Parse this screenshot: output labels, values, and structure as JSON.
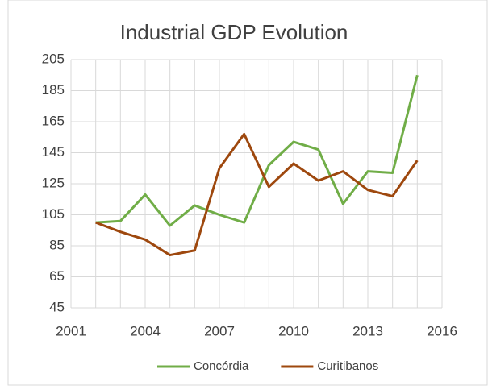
{
  "chart_data": {
    "type": "line",
    "title": "Industrial GDP Evolution",
    "x": [
      2002,
      2003,
      2004,
      2005,
      2006,
      2007,
      2008,
      2009,
      2010,
      2011,
      2012,
      2013,
      2014,
      2015
    ],
    "series": [
      {
        "name": "Concórdia",
        "color": "#70ad47",
        "values": [
          100,
          101,
          118,
          98,
          111,
          105,
          100,
          137,
          152,
          147,
          112,
          133,
          132,
          195
        ]
      },
      {
        "name": "Curitibanos",
        "color": "#9e480e",
        "values": [
          100,
          94,
          89,
          79,
          82,
          135,
          157,
          123,
          138,
          127,
          133,
          121,
          117,
          140
        ]
      }
    ],
    "xlim": [
      2001,
      2016
    ],
    "xticks": [
      2001,
      2004,
      2007,
      2010,
      2013,
      2016
    ],
    "xgrid": [
      2001,
      2002,
      2003,
      2004,
      2005,
      2006,
      2007,
      2008,
      2009,
      2010,
      2011,
      2012,
      2013,
      2014,
      2015,
      2016
    ],
    "ylim": [
      45,
      205
    ],
    "yticks": [
      45,
      65,
      85,
      105,
      125,
      145,
      165,
      185,
      205
    ],
    "grid": true,
    "legend": "bottom"
  }
}
